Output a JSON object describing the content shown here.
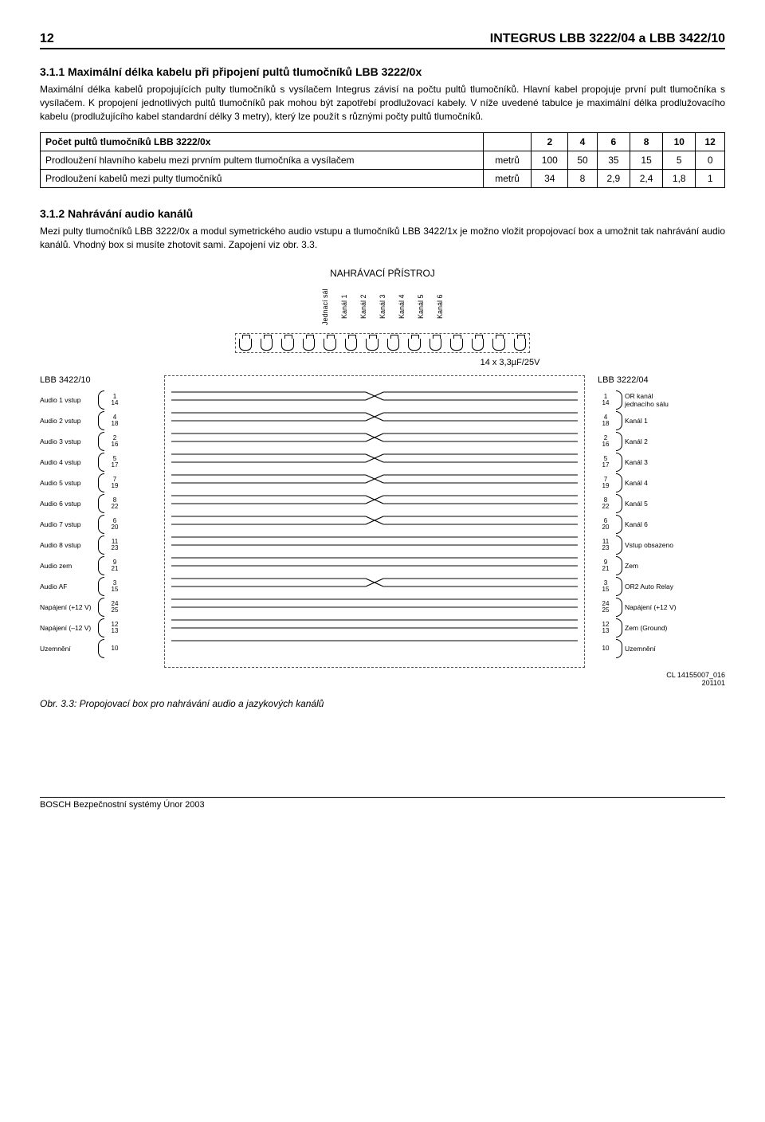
{
  "page_number": "12",
  "doc_title": "INTEGRUS LBB 3222/04 a LBB 3422/10",
  "section1": {
    "heading": "3.1.1 Maximální délka kabelu při připojení pultů tlumočníků LBB 3222/0x",
    "para": "Maximální délka kabelů propojujících pulty tlumočníků s vysílačem Integrus závisí na počtu pultů tlumočníků. Hlavní kabel propojuje první pult tlumočníka s vysílačem. K propojení jednotlivých pultů tlumočníků pak mohou být zapotřebí prodlužovací kabely. V níže uvedené tabulce je maximální délka prodlužovacího kabelu (prodlužujícího kabel standardní délky 3 metry), který lze použít s různými počty pultů tlumočníků."
  },
  "table": {
    "header": [
      "Počet pultů tlumočníků LBB 3222/0x",
      "",
      "2",
      "4",
      "6",
      "8",
      "10",
      "12"
    ],
    "rows": [
      [
        "Prodloužení hlavního kabelu mezi prvním pultem tlumočníka a vysílačem",
        "metrů",
        "100",
        "50",
        "35",
        "15",
        "5",
        "0"
      ],
      [
        "Prodloužení kabelů mezi pulty tlumočníků",
        "metrů",
        "34",
        "8",
        "2,9",
        "2,4",
        "1,8",
        "1"
      ]
    ]
  },
  "section2": {
    "heading": "3.1.2 Nahrávání audio kanálů",
    "para": "Mezi pulty tlumočníků LBB 3222/0x a modul symetrického audio vstupu a tlumočníků LBB 3422/1x je možno vložit propojovací box a umožnit tak nahrávání audio kanálů. Vhodný box si musíte zhotovit sami. Zapojení viz obr. 3.3."
  },
  "diagram": {
    "recorder_title": "NAHRÁVACÍ PŘÍSTROJ",
    "recorder_channels": [
      "Jednací sál",
      "Kanál 1",
      "Kanál 2",
      "Kanál 3",
      "Kanál 4",
      "Kanál 5",
      "Kanál 6"
    ],
    "cap_label": "14 x  3,3µF/25V",
    "left_title": "LBB 3422/10",
    "right_title": "LBB 3222/04",
    "left_rows": [
      {
        "label": "Audio 1 vstup",
        "pins": [
          "1",
          "14"
        ]
      },
      {
        "label": "Audio 2 vstup",
        "pins": [
          "4",
          "18"
        ]
      },
      {
        "label": "Audio 3 vstup",
        "pins": [
          "2",
          "16"
        ]
      },
      {
        "label": "Audio 4 vstup",
        "pins": [
          "5",
          "17"
        ]
      },
      {
        "label": "Audio 5 vstup",
        "pins": [
          "7",
          "19"
        ]
      },
      {
        "label": "Audio 6 vstup",
        "pins": [
          "8",
          "22"
        ]
      },
      {
        "label": "Audio 7 vstup",
        "pins": [
          "6",
          "20"
        ]
      },
      {
        "label": "Audio 8 vstup",
        "pins": [
          "11",
          "23"
        ]
      },
      {
        "label": "Audio zem",
        "pins": [
          "9",
          "21"
        ]
      },
      {
        "label": "Audio AF",
        "pins": [
          "3",
          "15"
        ]
      },
      {
        "label": "Napájení (+12 V)",
        "pins": [
          "24",
          "25"
        ]
      },
      {
        "label": "Napájení (–12 V)",
        "pins": [
          "12",
          "13"
        ]
      },
      {
        "label": "Uzemnění",
        "pins": [
          "10",
          ""
        ]
      }
    ],
    "right_rows": [
      {
        "pins": [
          "1",
          "14"
        ],
        "label": "OR kanál jednacího sálu"
      },
      {
        "pins": [
          "4",
          "18"
        ],
        "label": "Kanál 1"
      },
      {
        "pins": [
          "2",
          "16"
        ],
        "label": "Kanál 2"
      },
      {
        "pins": [
          "5",
          "17"
        ],
        "label": "Kanál 3"
      },
      {
        "pins": [
          "7",
          "19"
        ],
        "label": "Kanál 4"
      },
      {
        "pins": [
          "8",
          "22"
        ],
        "label": "Kanál 5"
      },
      {
        "pins": [
          "6",
          "20"
        ],
        "label": "Kanál 6"
      },
      {
        "pins": [
          "11",
          "23"
        ],
        "label": "Vstup obsazeno"
      },
      {
        "pins": [
          "9",
          "21"
        ],
        "label": "Zem"
      },
      {
        "pins": [
          "3",
          "15"
        ],
        "label": "OR2 Auto Relay"
      },
      {
        "pins": [
          "24",
          "25"
        ],
        "label": "Napájení (+12 V)"
      },
      {
        "pins": [
          "12",
          "13"
        ],
        "label": "Zem (Ground)"
      },
      {
        "pins": [
          "10",
          ""
        ],
        "label": "Uzemnění"
      }
    ],
    "code_ref": "CL 14155007_016\n201101"
  },
  "fig_caption": "Obr. 3.3: Propojovací box pro nahrávání audio a jazykových kanálů",
  "footer": "BOSCH Bezpečnostní systémy Únor 2003"
}
